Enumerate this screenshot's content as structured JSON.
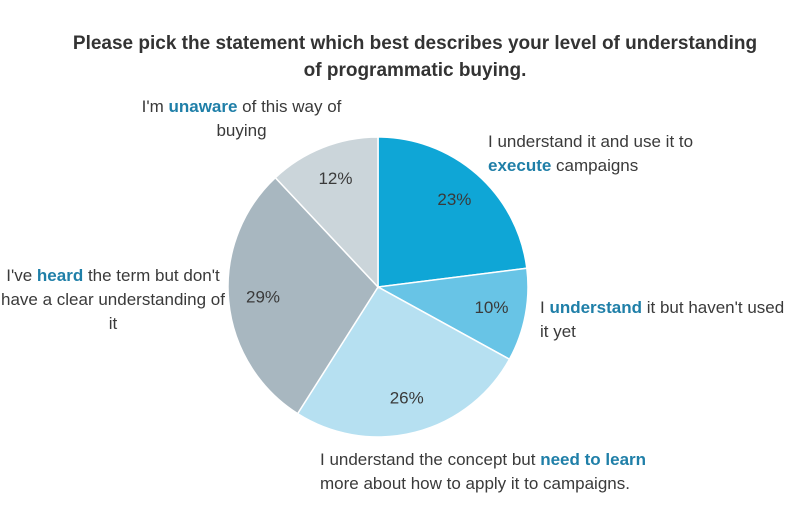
{
  "chart_data": {
    "type": "pie",
    "title": "Please pick the statement which best describes your level of understanding of programmatic buying.",
    "categories": [
      [
        "I understand it and use it to ",
        "execute",
        " campaigns"
      ],
      [
        "I ",
        "understand",
        " it but haven't used it yet"
      ],
      [
        "I understand the concept but ",
        "need to learn",
        " more about how to apply it to campaigns."
      ],
      [
        "I've ",
        "heard",
        " the term but don't have a clear understanding of it"
      ],
      [
        "I'm ",
        "unaware",
        " of this way of buying"
      ]
    ],
    "values": [
      23,
      10,
      26,
      29,
      12
    ],
    "value_labels": [
      "23%",
      "10%",
      "26%",
      "29%",
      "12%"
    ],
    "colors": [
      "#0fa6d6",
      "#68c4e6",
      "#b6e0f1",
      "#a8b7c0",
      "#cbd5da"
    ]
  }
}
